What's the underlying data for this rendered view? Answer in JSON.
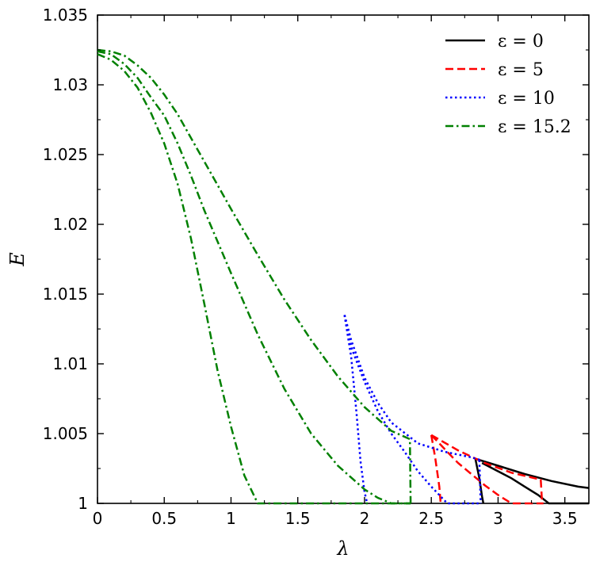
{
  "chart_data": {
    "type": "line",
    "title": "",
    "xlabel": "λ",
    "ylabel": "E",
    "xlim": [
      0,
      3.68
    ],
    "ylim": [
      1.0,
      1.035
    ],
    "xticks": [
      0,
      0.5,
      1,
      1.5,
      2,
      2.5,
      3,
      3.5
    ],
    "xtick_labels": [
      "0",
      "0.5",
      "1",
      "1.5",
      "2",
      "2.5",
      "3",
      "3.5"
    ],
    "yticks": [
      1.0,
      1.005,
      1.01,
      1.015,
      1.02,
      1.025,
      1.03,
      1.035
    ],
    "ytick_labels": [
      "1",
      "1.005",
      "1.01",
      "1.015",
      "1.02",
      "1.025",
      "1.03",
      "1.035"
    ],
    "grid": false,
    "legend_position": "top-right",
    "series": [
      {
        "name": "ε = 0",
        "color": "#000000",
        "style": "solid",
        "branches": [
          [
            [
              2.83,
              1.0032
            ],
            [
              3.0,
              1.0027
            ],
            [
              3.2,
              1.0021
            ],
            [
              3.4,
              1.0016
            ],
            [
              3.6,
              1.0012
            ],
            [
              3.68,
              1.0011
            ]
          ],
          [
            [
              2.88,
              1.0029
            ],
            [
              3.0,
              1.0023
            ],
            [
              3.1,
              1.0018
            ],
            [
              3.2,
              1.0012
            ],
            [
              3.3,
              1.0006
            ],
            [
              3.38,
              1.0
            ],
            [
              3.68,
              1.0
            ]
          ],
          [
            [
              2.83,
              1.0032
            ],
            [
              2.86,
              1.0018
            ],
            [
              2.88,
              1.0005
            ],
            [
              2.89,
              1.0
            ]
          ]
        ]
      },
      {
        "name": "ε = 5",
        "color": "#ff0000",
        "style": "dashed",
        "branches": [
          [
            [
              2.5,
              1.0049
            ],
            [
              2.7,
              1.0038
            ],
            [
              2.9,
              1.0029
            ],
            [
              3.1,
              1.0022
            ],
            [
              3.32,
              1.0017
            ],
            [
              3.33,
              1.0
            ]
          ],
          [
            [
              2.5,
              1.0049
            ],
            [
              2.6,
              1.0039
            ],
            [
              2.7,
              1.0029
            ],
            [
              2.8,
              1.0021
            ],
            [
              2.9,
              1.0013
            ],
            [
              3.0,
              1.0006
            ],
            [
              3.1,
              1.0
            ],
            [
              3.34,
              1.0
            ]
          ],
          [
            [
              2.5,
              1.0049
            ],
            [
              2.53,
              1.0032
            ],
            [
              2.56,
              1.0012
            ],
            [
              2.57,
              1.0
            ]
          ]
        ]
      },
      {
        "name": "ε = 10",
        "color": "#0000ff",
        "style": "dotted",
        "branches": [
          [
            [
              1.85,
              1.0135
            ],
            [
              1.9,
              1.0117
            ],
            [
              2.0,
              1.009
            ],
            [
              2.1,
              1.0072
            ],
            [
              2.2,
              1.0058
            ],
            [
              2.4,
              1.0043
            ],
            [
              2.6,
              1.0037
            ],
            [
              2.8,
              1.0033
            ],
            [
              2.87,
              1.0031
            ]
          ],
          [
            [
              1.85,
              1.0135
            ],
            [
              1.9,
              1.0112
            ],
            [
              2.0,
              1.0087
            ],
            [
              2.1,
              1.0066
            ],
            [
              2.2,
              1.005
            ],
            [
              2.3,
              1.0037
            ],
            [
              2.4,
              1.0023
            ],
            [
              2.5,
              1.0012
            ],
            [
              2.6,
              1.0002
            ],
            [
              2.62,
              1.0
            ],
            [
              2.87,
              1.0
            ]
          ],
          [
            [
              1.85,
              1.0135
            ],
            [
              1.9,
              1.0105
            ],
            [
              1.94,
              1.0065
            ],
            [
              1.97,
              1.003
            ],
            [
              2.0,
              1.0008
            ],
            [
              2.02,
              1.0
            ]
          ],
          [
            [
              2.86,
              1.0031
            ],
            [
              2.87,
              1.0
            ]
          ]
        ]
      },
      {
        "name": "ε = 15.2",
        "color": "#008000",
        "style": "dashdot",
        "branches": [
          [
            [
              0.0,
              1.0325
            ],
            [
              0.1,
              1.0324
            ],
            [
              0.2,
              1.0321
            ],
            [
              0.3,
              1.0314
            ],
            [
              0.4,
              1.0305
            ],
            [
              0.5,
              1.0293
            ],
            [
              0.6,
              1.0279
            ],
            [
              0.7,
              1.0262
            ],
            [
              0.8,
              1.0245
            ],
            [
              1.0,
              1.0211
            ],
            [
              1.2,
              1.0178
            ],
            [
              1.4,
              1.0146
            ],
            [
              1.6,
              1.0117
            ],
            [
              1.8,
              1.0091
            ],
            [
              2.0,
              1.0069
            ],
            [
              2.2,
              1.0052
            ],
            [
              2.34,
              1.0046
            ],
            [
              2.345,
              1.0
            ]
          ],
          [
            [
              0.0,
              1.0324
            ],
            [
              0.1,
              1.0322
            ],
            [
              0.2,
              1.0315
            ],
            [
              0.3,
              1.0305
            ],
            [
              0.4,
              1.0291
            ],
            [
              0.5,
              1.0278
            ],
            [
              0.6,
              1.0258
            ],
            [
              0.7,
              1.0235
            ],
            [
              0.8,
              1.021
            ],
            [
              1.0,
              1.0165
            ],
            [
              1.2,
              1.0121
            ],
            [
              1.4,
              1.0082
            ],
            [
              1.6,
              1.005
            ],
            [
              1.8,
              1.0027
            ],
            [
              2.0,
              1.001
            ],
            [
              2.1,
              1.0004
            ],
            [
              2.2,
              1.0
            ],
            [
              2.345,
              1.0
            ]
          ],
          [
            [
              0.0,
              1.0322
            ],
            [
              0.1,
              1.0318
            ],
            [
              0.2,
              1.031
            ],
            [
              0.3,
              1.0298
            ],
            [
              0.4,
              1.028
            ],
            [
              0.5,
              1.0258
            ],
            [
              0.6,
              1.0229
            ],
            [
              0.7,
              1.019
            ],
            [
              0.8,
              1.0143
            ],
            [
              0.9,
              1.0095
            ],
            [
              1.0,
              1.0055
            ],
            [
              1.1,
              1.002
            ],
            [
              1.2,
              1.0
            ],
            [
              1.22,
              1.0
            ],
            [
              2.0,
              1.0
            ],
            [
              2.345,
              1.0
            ]
          ]
        ]
      }
    ]
  }
}
